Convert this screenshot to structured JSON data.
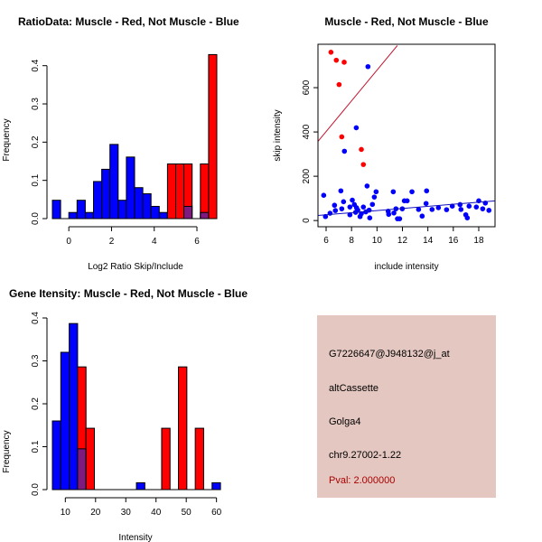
{
  "colors": {
    "muscle": "#ff0000",
    "not_muscle": "#0000ff",
    "overlap": "#7f1a7f",
    "red_fit": "#c0102a",
    "blue_fit": "#1010c0",
    "info_bg": "#e4c7c0",
    "pval": "#aa0000"
  },
  "chart_data": [
    {
      "type": "bar",
      "title": "RatioData: Muscle - Red, Not Muscle - Blue",
      "xlabel": "Log2 Ratio Skip/Include",
      "ylabel": "Frequency",
      "bin_start": -0.77,
      "bin_width": 0.385,
      "xlim": [
        -0.77,
        6.93
      ],
      "ylim": [
        0,
        0.43
      ],
      "xticks": [
        0,
        2,
        4,
        6
      ],
      "yticks": [
        0.0,
        0.1,
        0.2,
        0.3,
        0.4
      ],
      "xtick_labels": [
        "0",
        "2",
        "4",
        "6"
      ],
      "ytick_labels": [
        "0.0",
        "0.1",
        "0.2",
        "0.3",
        "0.4"
      ],
      "series": [
        {
          "name": "Not Muscle",
          "values": [
            0.048,
            0,
            0.016,
            0.048,
            0.016,
            0.097,
            0.129,
            0.194,
            0.048,
            0.161,
            0.081,
            0.065,
            0.032,
            0.016,
            0,
            0,
            0.032,
            0,
            0.016,
            0
          ]
        },
        {
          "name": "Muscle",
          "values": [
            0,
            0,
            0,
            0,
            0,
            0,
            0,
            0,
            0,
            0,
            0,
            0,
            0,
            0,
            0.143,
            0.143,
            0.143,
            0,
            0.143,
            0.429
          ]
        }
      ]
    },
    {
      "type": "scatter",
      "title": "Muscle - Red, Not Muscle - Blue",
      "xlabel": "include intensity",
      "ylabel": "skip intensity",
      "xlim": [
        5.36,
        19.28
      ],
      "ylim": [
        -28,
        796
      ],
      "xticks": [
        6,
        8,
        10,
        12,
        14,
        16,
        18
      ],
      "yticks": [
        0,
        200,
        400,
        600
      ],
      "xtick_labels": [
        "6",
        "8",
        "10",
        "12",
        "14",
        "16",
        "18"
      ],
      "ytick_labels": [
        "0",
        "200",
        "400",
        "600"
      ],
      "series": [
        {
          "name": "Muscle",
          "points": [
            [
              6.38,
              760
            ],
            [
              6.8,
              724
            ],
            [
              7.42,
              715
            ],
            [
              7.02,
              614
            ],
            [
              7.23,
              378
            ],
            [
              8.77,
              321
            ],
            [
              8.93,
              253
            ]
          ],
          "fit_line": [
            [
              5.34,
              356
            ],
            [
              11.6,
              790
            ]
          ]
        },
        {
          "name": "Not Muscle",
          "points": [
            [
              9.29,
              695
            ],
            [
              8.37,
              419
            ],
            [
              7.44,
              313
            ],
            [
              5.81,
              114
            ],
            [
              5.95,
              18
            ],
            [
              6.31,
              33
            ],
            [
              7.16,
              134
            ],
            [
              6.66,
              69
            ],
            [
              6.73,
              45
            ],
            [
              7.23,
              53
            ],
            [
              7.37,
              85
            ],
            [
              7.87,
              26
            ],
            [
              7.87,
              61
            ],
            [
              8.06,
              92
            ],
            [
              8.22,
              72
            ],
            [
              8.32,
              37
            ],
            [
              8.39,
              58
            ],
            [
              8.49,
              47
            ],
            [
              8.67,
              18
            ],
            [
              8.77,
              31
            ],
            [
              8.93,
              61
            ],
            [
              9.12,
              39
            ],
            [
              9.22,
              156
            ],
            [
              9.38,
              47
            ],
            [
              9.43,
              12
            ],
            [
              9.64,
              73
            ],
            [
              9.79,
              106
            ],
            [
              9.93,
              130
            ],
            [
              10.88,
              42
            ],
            [
              10.92,
              28
            ],
            [
              11.28,
              130
            ],
            [
              11.33,
              34
            ],
            [
              11.49,
              53
            ],
            [
              11.61,
              8
            ],
            [
              11.78,
              8
            ],
            [
              11.99,
              53
            ],
            [
              12.15,
              89
            ],
            [
              12.37,
              89
            ],
            [
              12.75,
              130
            ],
            [
              13.27,
              50
            ],
            [
              13.55,
              20
            ],
            [
              13.86,
              77
            ],
            [
              13.9,
              134
            ],
            [
              14.33,
              50
            ],
            [
              14.83,
              58
            ],
            [
              15.47,
              49
            ],
            [
              15.92,
              65
            ],
            [
              16.53,
              72
            ],
            [
              16.6,
              50
            ],
            [
              16.98,
              26
            ],
            [
              17.1,
              12
            ],
            [
              17.24,
              65
            ],
            [
              17.81,
              61
            ],
            [
              18.0,
              89
            ],
            [
              18.31,
              53
            ],
            [
              18.52,
              79
            ],
            [
              18.8,
              46
            ]
          ],
          "fit_line": [
            [
              5.34,
              23
            ],
            [
              19.3,
              89
            ]
          ]
        }
      ]
    },
    {
      "type": "bar",
      "title": "Gene Itensity: Muscle - Red, Not Muscle - Blue",
      "xlabel": "Intensity",
      "ylabel": "Frequency",
      "bin_start": 5.72,
      "bin_width": 2.78,
      "xlim": [
        5.72,
        61.3
      ],
      "ylim": [
        0,
        0.4
      ],
      "xticks": [
        10,
        20,
        30,
        40,
        50,
        60
      ],
      "yticks": [
        0.0,
        0.1,
        0.2,
        0.3,
        0.4
      ],
      "xtick_labels": [
        "10",
        "20",
        "30",
        "40",
        "50",
        "60"
      ],
      "ytick_labels": [
        "0.0",
        "0.1",
        "0.2",
        "0.3",
        "0.4"
      ],
      "series": [
        {
          "name": "Not Muscle",
          "values": [
            0.16,
            0.32,
            0.387,
            0.095,
            0,
            0,
            0,
            0,
            0,
            0,
            0.016,
            0,
            0,
            0,
            0,
            0,
            0,
            0,
            0,
            0.016
          ]
        },
        {
          "name": "Muscle",
          "values": [
            0,
            0,
            0,
            0.286,
            0.143,
            0,
            0,
            0,
            0,
            0,
            0,
            0,
            0,
            0.143,
            0,
            0.286,
            0,
            0.143,
            0,
            0
          ]
        }
      ]
    }
  ],
  "info_panel": {
    "probe_id": "G7226647@J948132@j_at",
    "event_type": "altCassette",
    "gene": "Golga4",
    "location": "chr9.27002-1.22",
    "pval": "Pval: 2.000000"
  }
}
